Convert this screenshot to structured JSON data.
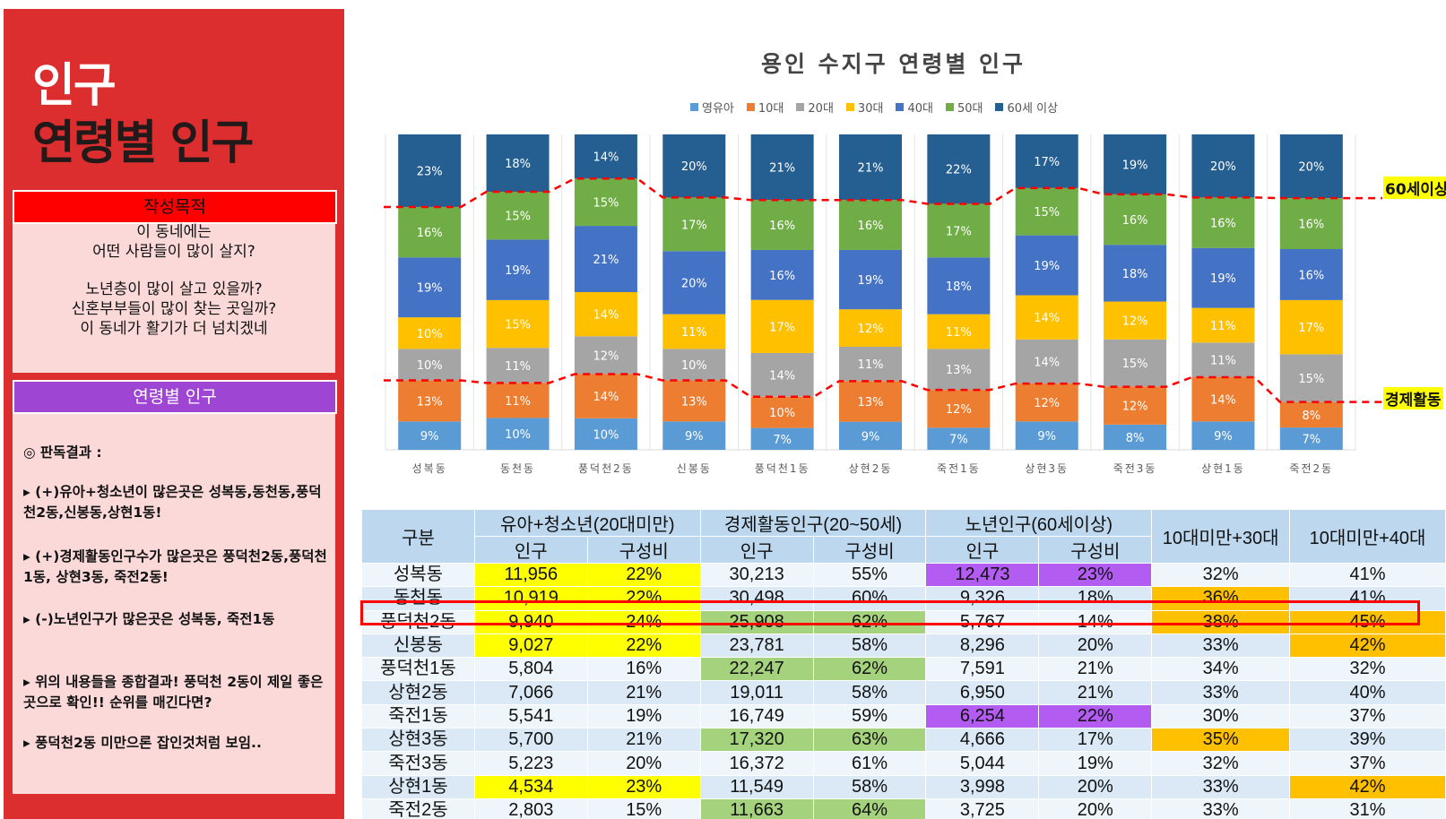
{
  "left_panel": {
    "title_line1": "인구",
    "title_line2": "연령별 인구",
    "purpose_header": "작성목적",
    "purpose_lines": [
      "이 동네에는",
      "어떤 사람들이 많이 살지?",
      "노년층이 많이 살고 있을까?",
      "신혼부부들이  많이 찾는 곳일까?",
      "이 동네가 활기가 더 넘치겠네"
    ],
    "age_header": "연령별 인구",
    "findings": [
      "◎ 판독결과 :",
      "▸ (+)유아+청소년이 많은곳은 성복동,동천동,풍덕천2동,신봉동,상현1동!",
      "▸ (+)경제활동인구수가 많은곳은 풍덕천2동,풍덕천1동, 상현3동, 죽전2동!",
      "▸ (-)노년인구가 많은곳은 성복동, 죽전1동",
      "▸ 위의 내용들을 종합결과! 풍덕천 2동이 제일 좋은곳으로 확인!! 순위를 매긴다면?",
      "▸ 풍덕천2동 미만으론 잡인것처럼 보임.."
    ]
  },
  "chart_data": {
    "type": "bar",
    "stacked": "percent",
    "title": "용인 수지구 연령별 인구",
    "categories": [
      "성복동",
      "동천동",
      "풍덕천2동",
      "신봉동",
      "풍덕천1동",
      "상현2동",
      "죽전1동",
      "상현3동",
      "죽전3동",
      "상현1동",
      "죽전2동"
    ],
    "series": [
      {
        "name": "영유아",
        "color": "#5b9bd5",
        "values": [
          9,
          10,
          10,
          9,
          7,
          9,
          7,
          9,
          8,
          9,
          7
        ]
      },
      {
        "name": "10대",
        "color": "#ed7d31",
        "values": [
          13,
          11,
          14,
          13,
          10,
          13,
          12,
          12,
          12,
          14,
          8
        ]
      },
      {
        "name": "20대",
        "color": "#a5a5a5",
        "values": [
          10,
          11,
          12,
          10,
          14,
          11,
          13,
          14,
          15,
          11,
          15
        ]
      },
      {
        "name": "30대",
        "color": "#ffc000",
        "values": [
          10,
          15,
          14,
          11,
          17,
          12,
          11,
          14,
          12,
          11,
          17
        ]
      },
      {
        "name": "40대",
        "color": "#4472c4",
        "values": [
          19,
          19,
          21,
          20,
          16,
          19,
          18,
          19,
          18,
          19,
          16
        ]
      },
      {
        "name": "50대",
        "color": "#70ad47",
        "values": [
          16,
          15,
          15,
          17,
          16,
          16,
          17,
          15,
          16,
          16,
          16
        ]
      },
      {
        "name": "60세 이상",
        "color": "#255e91",
        "values": [
          23,
          18,
          14,
          20,
          21,
          21,
          22,
          17,
          19,
          20,
          20
        ]
      }
    ],
    "annotations": [
      "60세이상",
      "경제활동"
    ],
    "ylim": [
      0,
      100
    ],
    "grid": false,
    "legend": "top"
  },
  "table": {
    "top_headers": [
      "구분",
      "유아+청소년(20대미만)",
      "경제활동인구(20~50세)",
      "노년인구(60세이상)",
      "10대미만+30대",
      "10대미만+40대"
    ],
    "sub_headers": [
      "인구",
      "구성비",
      "인구",
      "구성비",
      "인구",
      "구성비"
    ],
    "rows": [
      [
        "성복동",
        "11,956",
        "22%",
        "30,213",
        "55%",
        "12,473",
        "23%",
        "32%",
        "41%"
      ],
      [
        "동천동",
        "10,919",
        "22%",
        "30,498",
        "60%",
        "9,326",
        "18%",
        "36%",
        "41%"
      ],
      [
        "풍덕천2동",
        "9,940",
        "24%",
        "25,908",
        "62%",
        "5,767",
        "14%",
        "38%",
        "45%"
      ],
      [
        "신봉동",
        "9,027",
        "22%",
        "23,781",
        "58%",
        "8,296",
        "20%",
        "33%",
        "42%"
      ],
      [
        "풍덕천1동",
        "5,804",
        "16%",
        "22,247",
        "62%",
        "7,591",
        "21%",
        "34%",
        "32%"
      ],
      [
        "상현2동",
        "7,066",
        "21%",
        "19,011",
        "58%",
        "6,950",
        "21%",
        "33%",
        "40%"
      ],
      [
        "죽전1동",
        "5,541",
        "19%",
        "16,749",
        "59%",
        "6,254",
        "22%",
        "30%",
        "37%"
      ],
      [
        "상현3동",
        "5,700",
        "21%",
        "17,320",
        "63%",
        "4,666",
        "17%",
        "35%",
        "39%"
      ],
      [
        "죽전3동",
        "5,223",
        "20%",
        "16,372",
        "61%",
        "5,044",
        "19%",
        "32%",
        "37%"
      ],
      [
        "상현1동",
        "4,534",
        "23%",
        "11,549",
        "58%",
        "3,998",
        "20%",
        "33%",
        "42%"
      ],
      [
        "죽전2동",
        "2,803",
        "15%",
        "11,663",
        "64%",
        "3,725",
        "20%",
        "33%",
        "31%"
      ]
    ],
    "highlight_colors": {
      "yellow": "#ffff00",
      "green": "#a5d27c",
      "purple": "#b35cf2",
      "orange": "#ffc000"
    },
    "cell_highlights": [
      [
        "y",
        "y",
        "",
        "",
        "p",
        "p",
        "",
        ""
      ],
      [
        "y",
        "y",
        "",
        "",
        "",
        "",
        "o",
        ""
      ],
      [
        "y",
        "y",
        "g",
        "g",
        "",
        "",
        "o",
        "o"
      ],
      [
        "y",
        "y",
        "",
        "",
        "",
        "",
        "",
        "o"
      ],
      [
        "",
        "",
        "g",
        "g",
        "",
        "",
        "",
        ""
      ],
      [
        "",
        "",
        "",
        "",
        "",
        "",
        "",
        ""
      ],
      [
        "",
        "",
        "",
        "",
        "p",
        "p",
        "",
        ""
      ],
      [
        "",
        "",
        "g",
        "g",
        "",
        "",
        "o",
        ""
      ],
      [
        "",
        "",
        "",
        "",
        "",
        "",
        "",
        ""
      ],
      [
        "y",
        "y",
        "",
        "",
        "",
        "",
        "",
        "o"
      ],
      [
        "",
        "",
        "g",
        "g",
        "",
        "",
        "",
        ""
      ]
    ]
  }
}
